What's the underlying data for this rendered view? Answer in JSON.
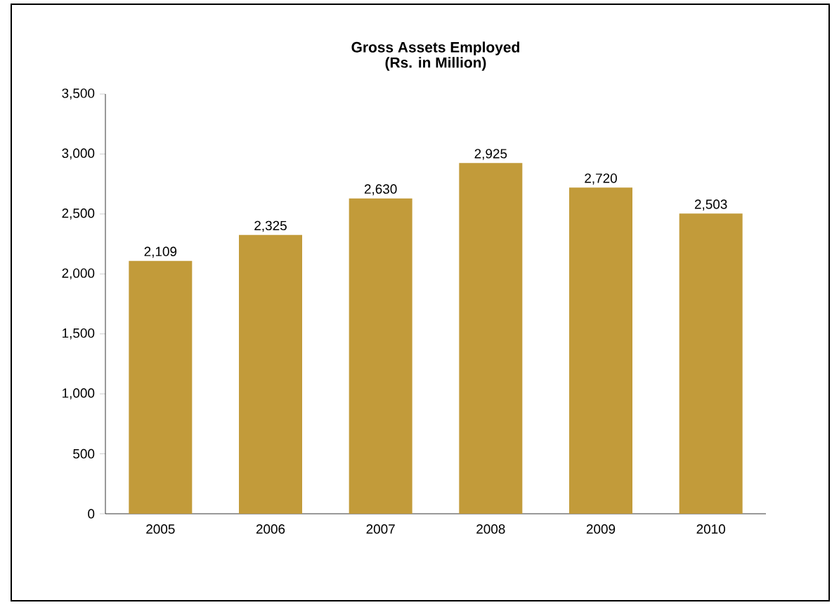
{
  "chart_data": {
    "type": "bar",
    "title": "Gross Assets Employed",
    "subtitle": "(Rs. in Million)",
    "categories": [
      "2005",
      "2006",
      "2007",
      "2008",
      "2009",
      "2010"
    ],
    "values": [
      2109,
      2325,
      2630,
      2925,
      2720,
      2503
    ],
    "value_labels": [
      "2,109",
      "2,325",
      "2,630",
      "2,925",
      "2,720",
      "2,503"
    ],
    "color": "#c29b3a",
    "ylim": [
      0,
      3500
    ],
    "yticks": [
      0,
      {
        "value": 500,
        "label": "500"
      },
      {
        "value": 1000,
        "label": "1,000"
      },
      {
        "value": 1500,
        "label": "1,500"
      },
      {
        "value": 2000,
        "label": "2,000"
      },
      {
        "value": 2500,
        "label": "2,500"
      },
      {
        "value": 3000,
        "label": "3,000"
      },
      {
        "value": 3500,
        "label": "3,500"
      }
    ],
    "grid": false
  }
}
